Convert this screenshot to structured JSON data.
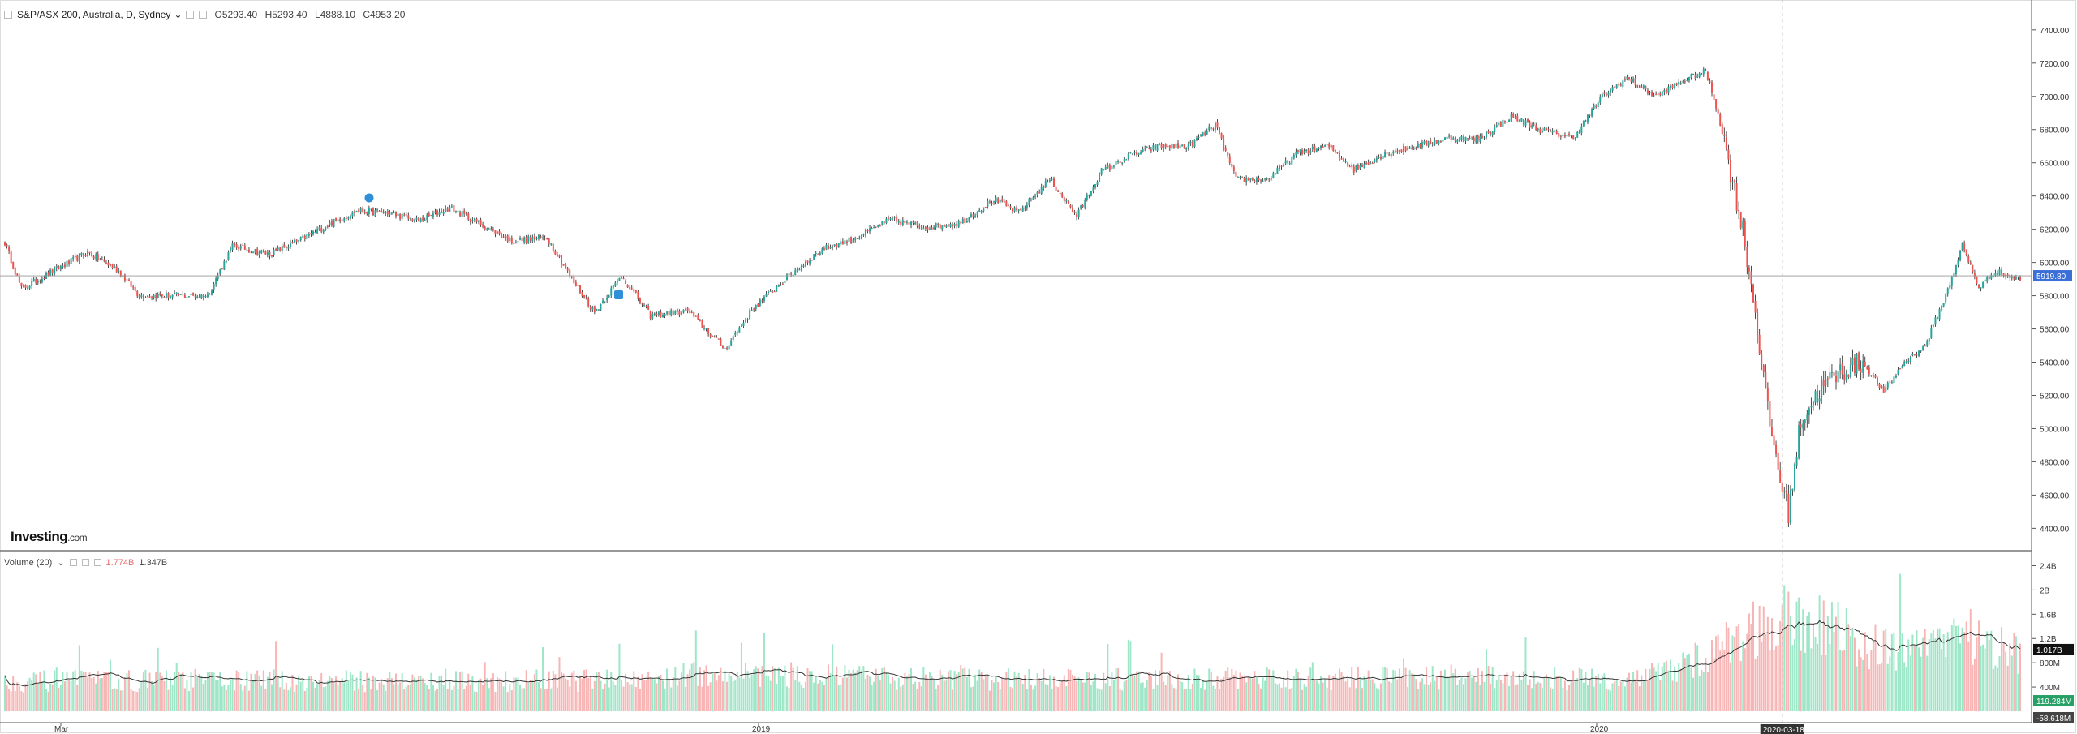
{
  "header": {
    "symbol": "S&P/ASX 200, Australia, D, Sydney",
    "dropdown": "⌄",
    "open": "O5293.40",
    "high": "H5293.40",
    "low": "L4888.10",
    "close": "C4953.20"
  },
  "volume_legend": {
    "label": "Volume (20)",
    "dropdown": "⌄",
    "value1": "1.774B",
    "value2": "1.347B"
  },
  "logo": {
    "main": "Investing",
    "suffix": ".com"
  },
  "colors": {
    "up": "#26a69a",
    "down": "#ef5350",
    "vol_up": "#9ee6c8",
    "vol_down": "#f7b5b5",
    "accent": "#4a7ff0",
    "price_label": "#3b6fd8"
  },
  "icons": {
    "settings": "gear-icon",
    "close": "close-icon",
    "dropdown": "chevron-down-icon",
    "flag_p": "pin-marker-icon",
    "flag_m": "pin-marker-icon"
  },
  "chart_data": {
    "type": "candlestick",
    "price_axis": {
      "ticks": [
        "7400.00",
        "7200.00",
        "7000.00",
        "6800.00",
        "6600.00",
        "6400.00",
        "6200.00",
        "6000.00",
        "5800.00",
        "5600.00",
        "5400.00",
        "5200.00",
        "5000.00",
        "4800.00",
        "4600.00",
        "4400.00"
      ],
      "ylim": [
        4270,
        7570
      ]
    },
    "volume_axis": {
      "ticks": [
        "2.4B",
        "2B",
        "1.6B",
        "1.2B",
        "800M",
        "400M"
      ],
      "ylim": [
        0,
        2.5
      ]
    },
    "x_labels": [
      "Mar",
      "2019",
      "2020"
    ],
    "current_price_label": "5919.80",
    "volume_labels": {
      "ma": "1.017B",
      "vol": "119.284M",
      "neg": "-58.618M"
    },
    "crosshair_date": "2020-03-18",
    "series_anchors": [
      {
        "i": 0,
        "p": 6120
      },
      {
        "i": 8,
        "p": 5840
      },
      {
        "i": 25,
        "p": 5960
      },
      {
        "i": 40,
        "p": 6060
      },
      {
        "i": 55,
        "p": 5950
      },
      {
        "i": 65,
        "p": 5800
      },
      {
        "i": 80,
        "p": 5800
      },
      {
        "i": 98,
        "p": 5800
      },
      {
        "i": 110,
        "p": 6100
      },
      {
        "i": 128,
        "p": 6050
      },
      {
        "i": 142,
        "p": 6130
      },
      {
        "i": 155,
        "p": 6220
      },
      {
        "i": 170,
        "p": 6310
      },
      {
        "i": 185,
        "p": 6300
      },
      {
        "i": 200,
        "p": 6250
      },
      {
        "i": 215,
        "p": 6330
      },
      {
        "i": 230,
        "p": 6230
      },
      {
        "i": 245,
        "p": 6130
      },
      {
        "i": 262,
        "p": 6150
      },
      {
        "i": 275,
        "p": 5880
      },
      {
        "i": 285,
        "p": 5700
      },
      {
        "i": 298,
        "p": 5920
      },
      {
        "i": 312,
        "p": 5680
      },
      {
        "i": 330,
        "p": 5710
      },
      {
        "i": 348,
        "p": 5480
      },
      {
        "i": 362,
        "p": 5730
      },
      {
        "i": 380,
        "p": 5930
      },
      {
        "i": 395,
        "p": 6080
      },
      {
        "i": 412,
        "p": 6150
      },
      {
        "i": 428,
        "p": 6260
      },
      {
        "i": 445,
        "p": 6210
      },
      {
        "i": 462,
        "p": 6240
      },
      {
        "i": 478,
        "p": 6380
      },
      {
        "i": 490,
        "p": 6300
      },
      {
        "i": 505,
        "p": 6500
      },
      {
        "i": 518,
        "p": 6280
      },
      {
        "i": 530,
        "p": 6550
      },
      {
        "i": 545,
        "p": 6650
      },
      {
        "i": 558,
        "p": 6700
      },
      {
        "i": 572,
        "p": 6700
      },
      {
        "i": 585,
        "p": 6830
      },
      {
        "i": 595,
        "p": 6500
      },
      {
        "i": 610,
        "p": 6500
      },
      {
        "i": 625,
        "p": 6660
      },
      {
        "i": 640,
        "p": 6700
      },
      {
        "i": 652,
        "p": 6560
      },
      {
        "i": 668,
        "p": 6660
      },
      {
        "i": 682,
        "p": 6700
      },
      {
        "i": 698,
        "p": 6750
      },
      {
        "i": 712,
        "p": 6740
      },
      {
        "i": 728,
        "p": 6880
      },
      {
        "i": 742,
        "p": 6800
      },
      {
        "i": 758,
        "p": 6750
      },
      {
        "i": 772,
        "p": 7000
      },
      {
        "i": 784,
        "p": 7110
      },
      {
        "i": 798,
        "p": 7000
      },
      {
        "i": 812,
        "p": 7100
      },
      {
        "i": 822,
        "p": 7150
      },
      {
        "i": 828,
        "p": 6900
      },
      {
        "i": 834,
        "p": 6550
      },
      {
        "i": 840,
        "p": 6200
      },
      {
        "i": 846,
        "p": 5700
      },
      {
        "i": 852,
        "p": 5100
      },
      {
        "i": 858,
        "p": 4700
      },
      {
        "i": 862,
        "p": 4500
      },
      {
        "i": 868,
        "p": 5050
      },
      {
        "i": 878,
        "p": 5250
      },
      {
        "i": 888,
        "p": 5350
      },
      {
        "i": 898,
        "p": 5400
      },
      {
        "i": 908,
        "p": 5220
      },
      {
        "i": 918,
        "p": 5400
      },
      {
        "i": 928,
        "p": 5500
      },
      {
        "i": 938,
        "p": 5800
      },
      {
        "i": 946,
        "p": 6100
      },
      {
        "i": 954,
        "p": 5850
      },
      {
        "i": 962,
        "p": 5950
      },
      {
        "i": 972,
        "p": 5900
      }
    ],
    "volume_anchors": [
      {
        "i": 0,
        "v": 0.48
      },
      {
        "i": 100,
        "v": 0.5
      },
      {
        "i": 200,
        "v": 0.48
      },
      {
        "i": 300,
        "v": 0.5
      },
      {
        "i": 350,
        "v": 0.62
      },
      {
        "i": 400,
        "v": 0.55
      },
      {
        "i": 500,
        "v": 0.5
      },
      {
        "i": 600,
        "v": 0.52
      },
      {
        "i": 700,
        "v": 0.55
      },
      {
        "i": 780,
        "v": 0.5
      },
      {
        "i": 810,
        "v": 0.7
      },
      {
        "i": 840,
        "v": 1.2
      },
      {
        "i": 860,
        "v": 1.5
      },
      {
        "i": 880,
        "v": 1.4
      },
      {
        "i": 900,
        "v": 1.05
      },
      {
        "i": 920,
        "v": 0.95
      },
      {
        "i": 950,
        "v": 1.15
      },
      {
        "i": 972,
        "v": 0.95
      }
    ]
  }
}
